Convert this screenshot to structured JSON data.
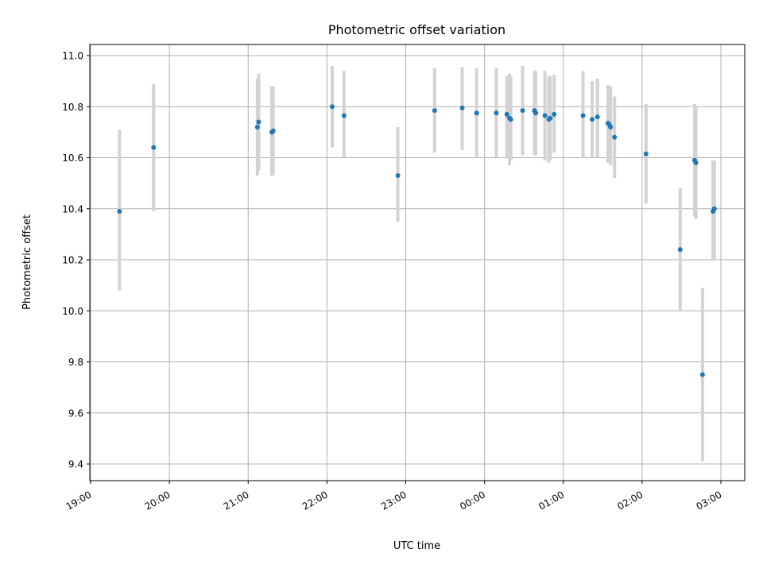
{
  "chart_data": {
    "type": "scatter",
    "title": "Photometric offset variation",
    "xlabel": "UTC time",
    "ylabel": "Photometric offset",
    "x_ticks": [
      "19:00",
      "20:00",
      "21:00",
      "22:00",
      "23:00",
      "00:00",
      "01:00",
      "02:00",
      "03:00"
    ],
    "y_ticks": [
      "9.4",
      "9.6",
      "9.8",
      "10.0",
      "10.2",
      "10.4",
      "10.6",
      "10.8",
      "11.0"
    ],
    "ylim": [
      9.34,
      11.045
    ],
    "grid": true,
    "series": [
      {
        "color": "#1f77b4",
        "errorbar_color": "#d3d3d3",
        "points": [
          {
            "x": "19:22",
            "y": 10.39,
            "err_low": 10.08,
            "err_high": 10.71
          },
          {
            "x": "19:48",
            "y": 10.64,
            "err_low": 10.39,
            "err_high": 10.89
          },
          {
            "x": "21:07",
            "y": 10.72,
            "err_low": 10.53,
            "err_high": 10.91
          },
          {
            "x": "21:08",
            "y": 10.74,
            "err_low": 10.55,
            "err_high": 10.93
          },
          {
            "x": "21:18",
            "y": 10.7,
            "err_low": 10.53,
            "err_high": 10.88
          },
          {
            "x": "21:19",
            "y": 10.705,
            "err_low": 10.53,
            "err_high": 10.88
          },
          {
            "x": "22:04",
            "y": 10.8,
            "err_low": 10.64,
            "err_high": 10.96
          },
          {
            "x": "22:13",
            "y": 10.765,
            "err_low": 10.6,
            "err_high": 10.94
          },
          {
            "x": "22:54",
            "y": 10.53,
            "err_low": 10.35,
            "err_high": 10.72
          },
          {
            "x": "23:22",
            "y": 10.785,
            "err_low": 10.62,
            "err_high": 10.95
          },
          {
            "x": "23:43",
            "y": 10.795,
            "err_low": 10.63,
            "err_high": 10.955
          },
          {
            "x": "23:54",
            "y": 10.775,
            "err_low": 10.6,
            "err_high": 10.95
          },
          {
            "x": "00:09",
            "y": 10.775,
            "err_low": 10.6,
            "err_high": 10.95
          },
          {
            "x": "00:17",
            "y": 10.77,
            "err_low": 10.6,
            "err_high": 10.92
          },
          {
            "x": "00:19",
            "y": 10.755,
            "err_low": 10.57,
            "err_high": 10.93
          },
          {
            "x": "00:20",
            "y": 10.75,
            "err_low": 10.59,
            "err_high": 10.92
          },
          {
            "x": "00:29",
            "y": 10.785,
            "err_low": 10.61,
            "err_high": 10.96
          },
          {
            "x": "00:38",
            "y": 10.785,
            "err_low": 10.61,
            "err_high": 10.94
          },
          {
            "x": "00:39",
            "y": 10.775,
            "err_low": 10.61,
            "err_high": 10.94
          },
          {
            "x": "00:46",
            "y": 10.765,
            "err_low": 10.59,
            "err_high": 10.94
          },
          {
            "x": "00:49",
            "y": 10.75,
            "err_low": 10.58,
            "err_high": 10.92
          },
          {
            "x": "00:50",
            "y": 10.755,
            "err_low": 10.59,
            "err_high": 10.92
          },
          {
            "x": "00:53",
            "y": 10.77,
            "err_low": 10.62,
            "err_high": 10.925
          },
          {
            "x": "01:15",
            "y": 10.765,
            "err_low": 10.6,
            "err_high": 10.94
          },
          {
            "x": "01:22",
            "y": 10.75,
            "err_low": 10.6,
            "err_high": 10.9
          },
          {
            "x": "01:26",
            "y": 10.76,
            "err_low": 10.6,
            "err_high": 10.91
          },
          {
            "x": "01:34",
            "y": 10.735,
            "err_low": 10.58,
            "err_high": 10.885
          },
          {
            "x": "01:35",
            "y": 10.73,
            "err_low": 10.58,
            "err_high": 10.88
          },
          {
            "x": "01:36",
            "y": 10.72,
            "err_low": 10.57,
            "err_high": 10.88
          },
          {
            "x": "01:39",
            "y": 10.68,
            "err_low": 10.52,
            "err_high": 10.84
          },
          {
            "x": "02:03",
            "y": 10.615,
            "err_low": 10.42,
            "err_high": 10.81
          },
          {
            "x": "02:29",
            "y": 10.24,
            "err_low": 10.0,
            "err_high": 10.48
          },
          {
            "x": "02:40",
            "y": 10.59,
            "err_low": 10.37,
            "err_high": 10.81
          },
          {
            "x": "02:41",
            "y": 10.58,
            "err_low": 10.36,
            "err_high": 10.8
          },
          {
            "x": "02:46",
            "y": 9.75,
            "err_low": 9.41,
            "err_high": 10.09
          },
          {
            "x": "02:54",
            "y": 10.39,
            "err_low": 10.2,
            "err_high": 10.59
          },
          {
            "x": "02:55",
            "y": 10.4,
            "err_low": 10.2,
            "err_high": 10.59
          }
        ]
      }
    ]
  }
}
